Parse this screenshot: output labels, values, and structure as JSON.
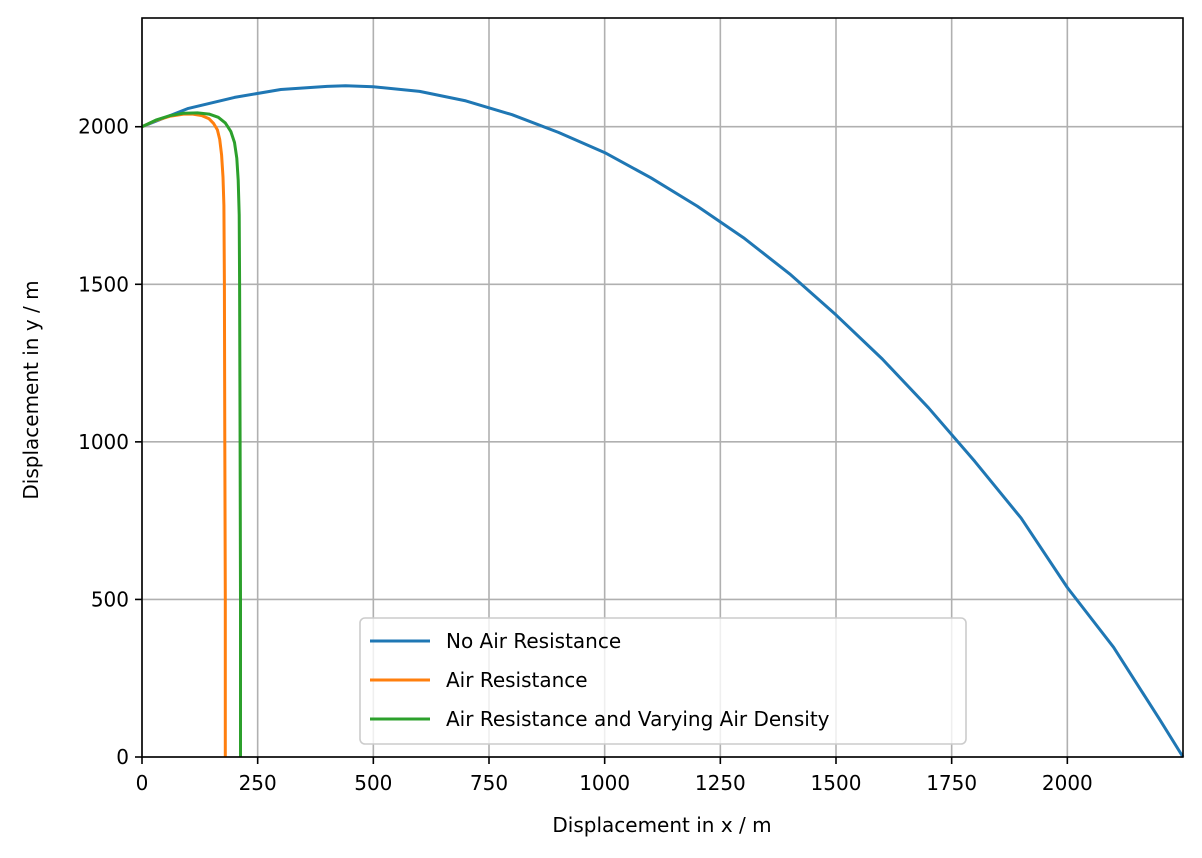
{
  "chart_data": {
    "type": "line",
    "title": "",
    "xlabel": "Displacement in x / m",
    "ylabel": "Displacement in y / m",
    "xlim": [
      0,
      2250
    ],
    "ylim": [
      0,
      2345
    ],
    "grid": true,
    "legend_position": "lower-center",
    "xticks": [
      0,
      250,
      500,
      750,
      1000,
      1250,
      1500,
      1750,
      2000
    ],
    "xtick_labels": [
      "0",
      "250",
      "500",
      "750",
      "1000",
      "1250",
      "1500",
      "1750",
      "2000"
    ],
    "yticks": [
      0,
      500,
      1000,
      1500,
      2000
    ],
    "ytick_labels": [
      "0",
      "500",
      "1000",
      "1500",
      "2000"
    ],
    "series": [
      {
        "name": "No Air Resistance",
        "color": "#1f77b4",
        "x": [
          0,
          100,
          200,
          300,
          400,
          440,
          500,
          600,
          700,
          800,
          900,
          1000,
          1100,
          1200,
          1300,
          1400,
          1500,
          1600,
          1700,
          1800,
          1900,
          2000,
          2100,
          2200,
          2250
        ],
        "y": [
          2000,
          2058,
          2093,
          2118,
          2128,
          2130,
          2127,
          2112,
          2082,
          2038,
          1982,
          1918,
          1838,
          1748,
          1648,
          1533,
          1403,
          1263,
          1108,
          938,
          758,
          538,
          348,
          118,
          0
        ]
      },
      {
        "name": "Air Resistance",
        "color": "#ff7f0e",
        "x": [
          0,
          30,
          60,
          90,
          110,
          130,
          145,
          155,
          163,
          168,
          172,
          175,
          177,
          178,
          179,
          180,
          180
        ],
        "y": [
          2000,
          2020,
          2033,
          2040,
          2040,
          2035,
          2025,
          2010,
          1990,
          1960,
          1910,
          1840,
          1750,
          1500,
          1000,
          500,
          0
        ]
      },
      {
        "name": "Air Resistance and Varying Air Density",
        "color": "#2ca02c",
        "x": [
          0,
          30,
          60,
          90,
          120,
          145,
          165,
          180,
          192,
          200,
          205,
          208,
          210,
          211,
          212,
          213,
          213
        ],
        "y": [
          2000,
          2021,
          2035,
          2043,
          2044,
          2040,
          2030,
          2012,
          1985,
          1950,
          1900,
          1830,
          1720,
          1500,
          1000,
          500,
          0
        ]
      }
    ]
  }
}
